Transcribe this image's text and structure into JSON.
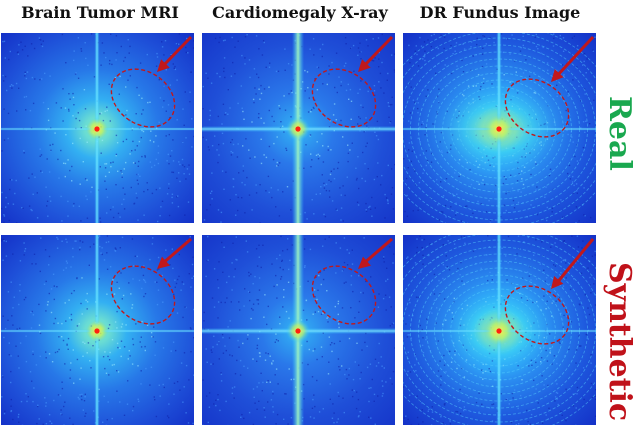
{
  "figure": {
    "columns": [
      {
        "title": "Brain Tumor MRI",
        "kind": "mri"
      },
      {
        "title": "Cardiomegaly X-ray",
        "kind": "xray"
      },
      {
        "title": "DR Fundus Image",
        "kind": "fundus"
      }
    ],
    "rows": [
      {
        "label": "Real",
        "color": "#1aa84f"
      },
      {
        "label": "Synthetic",
        "color": "#c0121a"
      }
    ],
    "colors": {
      "spectrum_dark": "#1432c8",
      "spectrum_mid": "#33c8ff",
      "spectrum_peak": "#ffe94a",
      "center_dot": "#ff2010",
      "annotation": "#c0181c"
    },
    "annotation_icons": [
      "dashed-ellipse-marker",
      "red-arrow-icon"
    ]
  }
}
